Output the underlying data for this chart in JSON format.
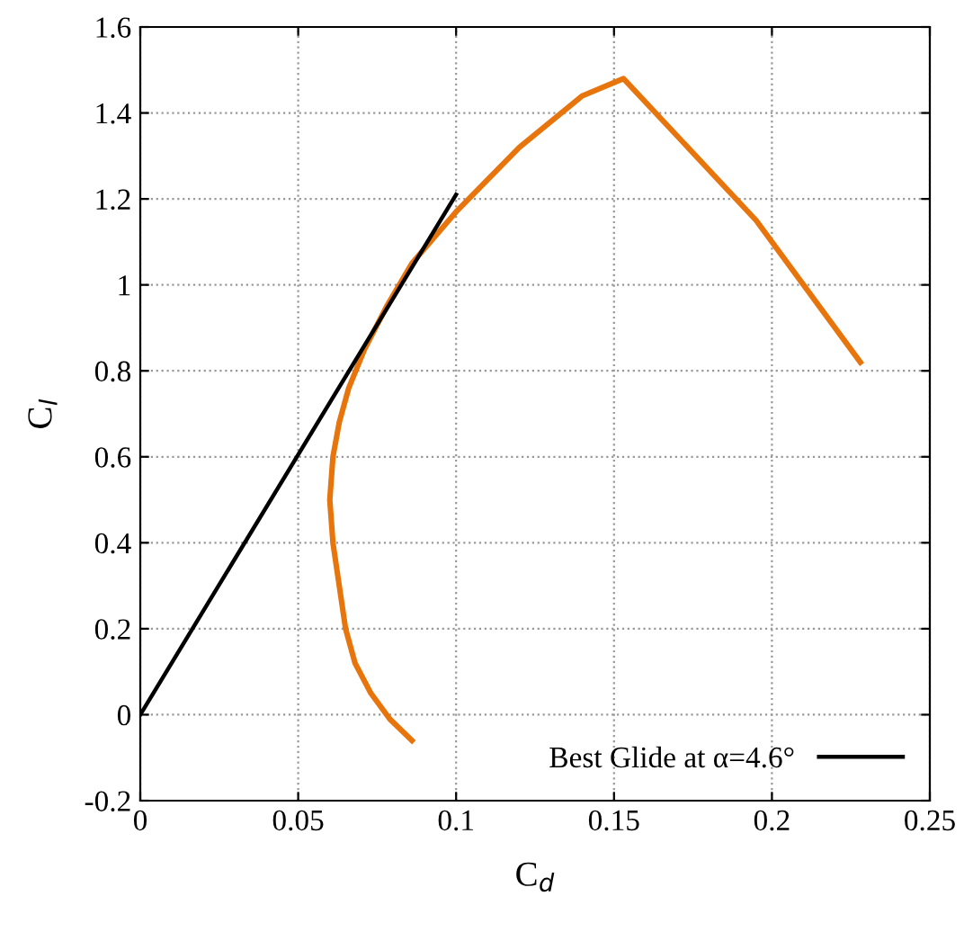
{
  "chart_data": {
    "type": "line",
    "xlabel": "C$_{d}$",
    "ylabel": "C$_{l}$",
    "xlim": [
      0,
      0.25
    ],
    "ylim": [
      -0.2,
      1.6
    ],
    "xticks": [
      0,
      0.05,
      0.1,
      0.15,
      0.2,
      0.25
    ],
    "yticks": [
      -0.2,
      0,
      0.2,
      0.4,
      0.6,
      0.8,
      1,
      1.2,
      1.4,
      1.6
    ],
    "grid": true,
    "legend": "bottom right",
    "series": [
      {
        "color": "#e8740c",
        "x": [
          0.086,
          0.079,
          0.073,
          0.068,
          0.065,
          0.063,
          0.061,
          0.06,
          0.061,
          0.063,
          0.066,
          0.071,
          0.078,
          0.086,
          0.1,
          0.12,
          0.14,
          0.153,
          0.195,
          0.228
        ],
        "values": [
          -0.06,
          -0.01,
          0.05,
          0.12,
          0.2,
          0.3,
          0.4,
          0.5,
          0.6,
          0.68,
          0.76,
          0.85,
          0.95,
          1.05,
          1.17,
          1.32,
          1.44,
          1.48,
          1.15,
          0.82
        ]
      },
      {
        "name": "Best Glide at α=4.6°",
        "color": "#000000",
        "x": [
          0,
          0.1
        ],
        "values": [
          0,
          1.21
        ]
      }
    ]
  }
}
